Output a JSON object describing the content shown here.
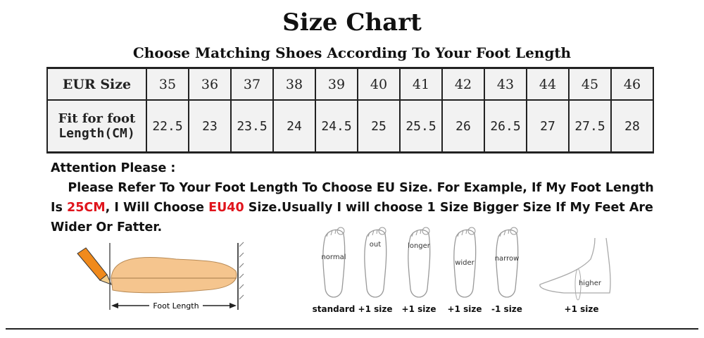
{
  "title": "Size Chart",
  "subtitle": "Choose Matching Shoes According To Your Foot Length",
  "table": {
    "row1_header": "EUR Size",
    "row2_header_line1": "Fit for foot",
    "row2_header_line2": "Length(CM)",
    "sizes": [
      "35",
      "36",
      "37",
      "38",
      "39",
      "40",
      "41",
      "42",
      "43",
      "44",
      "45",
      "46"
    ],
    "lengths": [
      "22.5",
      "23",
      "23.5",
      "24",
      "24.5",
      "25",
      "25.5",
      "26",
      "26.5",
      "27",
      "27.5",
      "28"
    ]
  },
  "attention": {
    "heading": "Attention Please :",
    "text1": "Please Refer To Your Foot Length To Choose EU Size. For Example, If My Foot Length Is ",
    "highlight1": "25CM",
    "text2": ", I Will Choose ",
    "highlight2": "EU40",
    "text3": " Size.Usually I will choose 1 Size Bigger Size If My Feet Are Wider Or Fatter.",
    "highlight_color": "#e0141c"
  },
  "illustration": {
    "foot_length_label": "Foot Length"
  },
  "foot_types": [
    {
      "label": "normal",
      "caption": "standard"
    },
    {
      "label": "out",
      "caption": "+1 size"
    },
    {
      "label": "longer",
      "caption": "+1 size"
    },
    {
      "label": "wider",
      "caption": "+1 size"
    },
    {
      "label": "narrow",
      "caption": "-1 size"
    },
    {
      "label": "higher",
      "caption": "+1 size"
    }
  ]
}
